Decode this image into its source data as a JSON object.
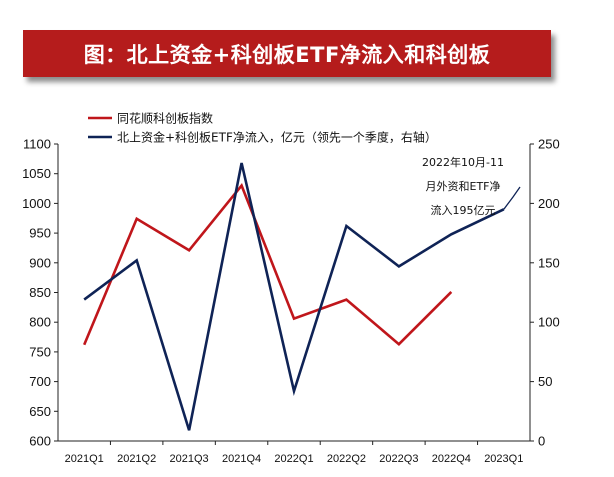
{
  "header": {
    "title": "图：北上资金+科创板ETF净流入和科创板"
  },
  "chart_data": {
    "type": "line",
    "categories": [
      "2021Q1",
      "2021Q2",
      "2021Q3",
      "2021Q4",
      "2022Q1",
      "2022Q2",
      "2022Q3",
      "2022Q4",
      "2023Q1"
    ],
    "left_axis": {
      "ylim": [
        600,
        1100
      ],
      "ticks": [
        "600",
        "650",
        "700",
        "750",
        "800",
        "850",
        "900",
        "950",
        "1000",
        "1050",
        "1100"
      ]
    },
    "right_axis": {
      "ylim": [
        0,
        250
      ],
      "ticks": [
        "0",
        "50",
        "100",
        "150",
        "200",
        "250"
      ]
    },
    "series": [
      {
        "name": "同花顺科创板指数",
        "axis": "left",
        "color": "#c0161b",
        "values": [
          762,
          974,
          921,
          1030,
          806,
          838,
          763,
          851,
          null
        ]
      },
      {
        "name": "北上资金+科创板ETF净流入，亿元（领先一个季度，右轴）",
        "axis": "right",
        "color": "#0f2356",
        "values": [
          119,
          152,
          9,
          234,
          42,
          181,
          147,
          174,
          195
        ]
      }
    ],
    "annotation": {
      "lines": [
        "2022年10月-11",
        "月外资和ETF净",
        "流入195亿元"
      ],
      "color": "#0f2356"
    }
  }
}
